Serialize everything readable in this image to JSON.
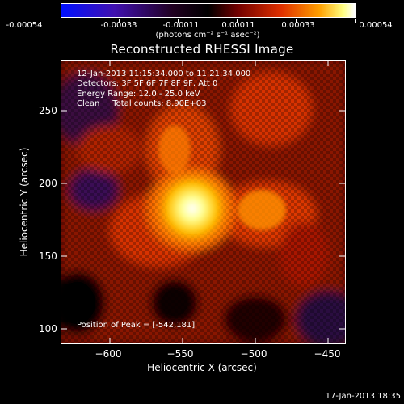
{
  "colorbar": {
    "tick_labels": [
      "-0.00054",
      "-0.00033",
      "-0.00011",
      "0.00011",
      "0.00033",
      "0.00054"
    ],
    "units_label": "(photons cm⁻² s⁻¹ asec⁻²)"
  },
  "title": "Reconstructed RHESSI Image",
  "info": {
    "time_range": "12-Jan-2013 11:15:34.000 to 11:21:34.000",
    "detectors": "Detectors: 3F 5F 6F 7F 8F 9F, Att 0",
    "energy": "Energy Range: 12.0 - 25.0 keV",
    "clean": "Clean     Total counts: 8.90E+03",
    "peak": "Position of Peak = [-542,181]"
  },
  "xlabel": "Heliocentric X (arcsec)",
  "ylabel": "Heliocentric Y (arcsec)",
  "xticks": [
    "−600",
    "−550",
    "−500",
    "−450"
  ],
  "yticks": [
    "100",
    "150",
    "200",
    "250"
  ],
  "timestamp": "17-Jan-2013 18:35",
  "chart_data": {
    "type": "heatmap",
    "title": "Reconstructed RHESSI Image",
    "xlabel": "Heliocentric X (arcsec)",
    "ylabel": "Heliocentric Y (arcsec)",
    "xlim": [
      -634,
      -437
    ],
    "ylim": [
      90,
      285
    ],
    "xticks": [
      -600,
      -550,
      -500,
      -450
    ],
    "yticks": [
      100,
      150,
      200,
      250
    ],
    "colorbar_range": [
      -0.00054,
      0.00054
    ],
    "colorbar_ticks": [
      -0.00054,
      -0.00033,
      -0.00011,
      0.00011,
      0.00033,
      0.00054
    ],
    "colormap": "blue-purple-black-red-yellow-white",
    "peak_position": [
      -542,
      181
    ]
  }
}
